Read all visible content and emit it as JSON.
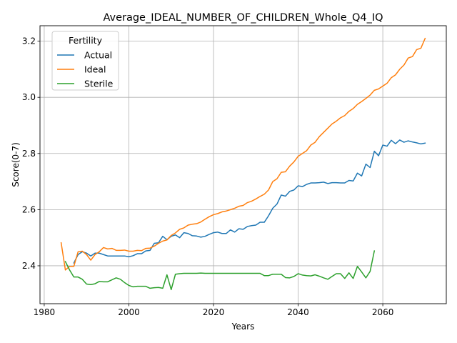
{
  "chart_data": {
    "type": "line",
    "title": "Average_IDEAL_NUMBER_OF_CHILDREN_Whole_Q4_IQ",
    "xlabel": "Years",
    "ylabel": "Score(0-7)",
    "xlim": [
      1979,
      2075
    ],
    "ylim": [
      2.265,
      3.255
    ],
    "xticks": [
      1980,
      2000,
      2020,
      2040,
      2060
    ],
    "yticks": [
      2.4,
      2.6,
      2.8,
      3.0,
      3.2
    ],
    "grid": true,
    "legend": {
      "title": "Fertility",
      "position": "top-left"
    },
    "series": [
      {
        "name": "Actual",
        "color": "#1f77b4",
        "x": [
          1987,
          1988,
          1989,
          1990,
          1991,
          1992,
          1993,
          1994,
          1995,
          1996,
          1997,
          1998,
          1999,
          2000,
          2001,
          2002,
          2003,
          2004,
          2005,
          2006,
          2007,
          2008,
          2009,
          2010,
          2011,
          2012,
          2013,
          2014,
          2015,
          2016,
          2017,
          2018,
          2019,
          2020,
          2021,
          2022,
          2023,
          2024,
          2025,
          2026,
          2027,
          2028,
          2029,
          2030,
          2031,
          2032,
          2033,
          2034,
          2035,
          2036,
          2037,
          2038,
          2039,
          2040,
          2041,
          2042,
          2043,
          2044,
          2045,
          2046,
          2047,
          2048,
          2049,
          2050,
          2051,
          2052,
          2053,
          2054,
          2055,
          2056,
          2057,
          2058,
          2059,
          2060,
          2061,
          2062,
          2063,
          2064,
          2065,
          2066,
          2067,
          2068,
          2069,
          2070
        ],
        "values": [
          2.41,
          2.44,
          2.45,
          2.445,
          2.435,
          2.445,
          2.445,
          2.44,
          2.435,
          2.435,
          2.435,
          2.435,
          2.435,
          2.432,
          2.436,
          2.443,
          2.443,
          2.453,
          2.455,
          2.48,
          2.482,
          2.505,
          2.493,
          2.505,
          2.51,
          2.5,
          2.518,
          2.515,
          2.507,
          2.506,
          2.502,
          2.505,
          2.512,
          2.518,
          2.52,
          2.515,
          2.515,
          2.528,
          2.52,
          2.532,
          2.53,
          2.54,
          2.543,
          2.545,
          2.555,
          2.555,
          2.578,
          2.605,
          2.62,
          2.652,
          2.648,
          2.665,
          2.67,
          2.685,
          2.682,
          2.69,
          2.695,
          2.695,
          2.696,
          2.698,
          2.693,
          2.696,
          2.696,
          2.695,
          2.695,
          2.704,
          2.702,
          2.73,
          2.72,
          2.762,
          2.75,
          2.808,
          2.792,
          2.83,
          2.826,
          2.847,
          2.835,
          2.848,
          2.84,
          2.845,
          2.841,
          2.838,
          2.834,
          2.837
        ]
      },
      {
        "name": "Ideal",
        "color": "#ff7f0e",
        "x": [
          1984,
          1985,
          1986,
          1987,
          1988,
          1989,
          1990,
          1991,
          1992,
          1993,
          1994,
          1995,
          1996,
          1997,
          1998,
          1999,
          2000,
          2001,
          2002,
          2003,
          2004,
          2005,
          2006,
          2007,
          2008,
          2009,
          2010,
          2011,
          2012,
          2013,
          2014,
          2015,
          2016,
          2017,
          2018,
          2019,
          2020,
          2021,
          2022,
          2023,
          2024,
          2025,
          2026,
          2027,
          2028,
          2029,
          2030,
          2031,
          2032,
          2033,
          2034,
          2035,
          2036,
          2037,
          2038,
          2039,
          2040,
          2041,
          2042,
          2043,
          2044,
          2045,
          2046,
          2047,
          2048,
          2049,
          2050,
          2051,
          2052,
          2053,
          2054,
          2055,
          2056,
          2057,
          2058,
          2059,
          2060,
          2061,
          2062,
          2063,
          2064,
          2065,
          2066,
          2067,
          2068,
          2069,
          2070
        ],
        "values": [
          2.482,
          2.385,
          2.398,
          2.398,
          2.45,
          2.452,
          2.44,
          2.42,
          2.44,
          2.45,
          2.465,
          2.46,
          2.462,
          2.455,
          2.455,
          2.456,
          2.452,
          2.452,
          2.455,
          2.454,
          2.462,
          2.463,
          2.47,
          2.48,
          2.488,
          2.492,
          2.508,
          2.517,
          2.53,
          2.535,
          2.545,
          2.548,
          2.55,
          2.556,
          2.566,
          2.575,
          2.582,
          2.586,
          2.592,
          2.595,
          2.6,
          2.605,
          2.612,
          2.615,
          2.625,
          2.63,
          2.638,
          2.647,
          2.655,
          2.67,
          2.7,
          2.71,
          2.733,
          2.735,
          2.755,
          2.77,
          2.79,
          2.8,
          2.81,
          2.83,
          2.84,
          2.86,
          2.875,
          2.89,
          2.905,
          2.915,
          2.927,
          2.935,
          2.95,
          2.96,
          2.975,
          2.985,
          2.996,
          3.008,
          3.025,
          3.03,
          3.04,
          3.05,
          3.07,
          3.08,
          3.1,
          3.115,
          3.14,
          3.145,
          3.17,
          3.175,
          3.21
        ]
      },
      {
        "name": "Sterile",
        "color": "#2ca02c",
        "x": [
          1985,
          1986,
          1987,
          1988,
          1989,
          1990,
          1991,
          1992,
          1993,
          1994,
          1995,
          1996,
          1997,
          1998,
          1999,
          2000,
          2001,
          2002,
          2003,
          2004,
          2005,
          2006,
          2007,
          2008,
          2009,
          2010,
          2011,
          2012,
          2013,
          2014,
          2015,
          2016,
          2017,
          2018,
          2019,
          2020,
          2021,
          2022,
          2023,
          2024,
          2025,
          2026,
          2027,
          2028,
          2029,
          2030,
          2031,
          2032,
          2033,
          2034,
          2035,
          2036,
          2037,
          2038,
          2039,
          2040,
          2041,
          2042,
          2043,
          2044,
          2045,
          2046,
          2047,
          2048,
          2049,
          2050,
          2051,
          2052,
          2053,
          2054,
          2055,
          2056,
          2057,
          2058
        ],
        "values": [
          2.415,
          2.385,
          2.36,
          2.36,
          2.352,
          2.335,
          2.333,
          2.336,
          2.344,
          2.343,
          2.343,
          2.35,
          2.357,
          2.352,
          2.34,
          2.33,
          2.325,
          2.327,
          2.327,
          2.327,
          2.32,
          2.322,
          2.323,
          2.32,
          2.368,
          2.315,
          2.37,
          2.372,
          2.373,
          2.373,
          2.373,
          2.373,
          2.374,
          2.373,
          2.373,
          2.373,
          2.373,
          2.373,
          2.373,
          2.373,
          2.373,
          2.373,
          2.373,
          2.373,
          2.373,
          2.373,
          2.373,
          2.365,
          2.365,
          2.37,
          2.37,
          2.37,
          2.358,
          2.357,
          2.362,
          2.372,
          2.367,
          2.365,
          2.364,
          2.368,
          2.363,
          2.357,
          2.352,
          2.362,
          2.372,
          2.372,
          2.355,
          2.375,
          2.355,
          2.398,
          2.378,
          2.357,
          2.38,
          2.453
        ]
      }
    ]
  }
}
